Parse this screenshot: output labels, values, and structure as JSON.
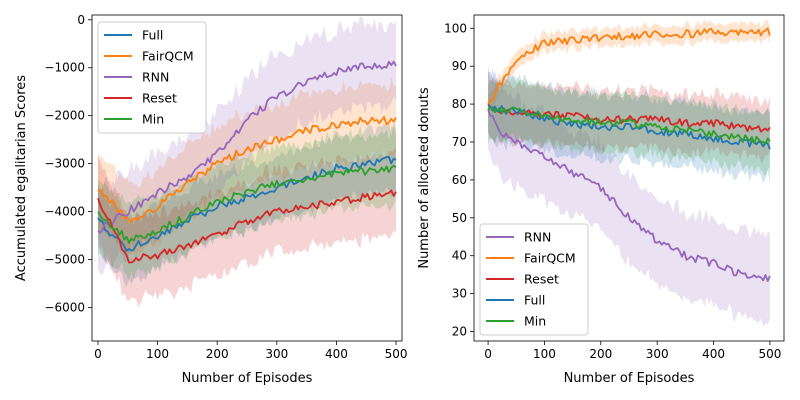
{
  "chart_data": [
    {
      "type": "line",
      "title": "",
      "xlabel": "Number of Episodes",
      "ylabel": "Accumulated egalitarian Scores",
      "xlim": [
        -10,
        510
      ],
      "ylim": [
        -6700,
        100
      ],
      "xticks": [
        0,
        100,
        200,
        300,
        400,
        500
      ],
      "yticks": [
        -6000,
        -5000,
        -4000,
        -3000,
        -2000,
        -1000,
        0
      ],
      "xtick_labels": [
        "0",
        "100",
        "200",
        "300",
        "400",
        "500"
      ],
      "ytick_labels": [
        "−6000",
        "−5000",
        "−4000",
        "−3000",
        "−2000",
        "−1000",
        "0"
      ],
      "legend_position": "upper-left",
      "series": [
        {
          "name": "Full",
          "color": "#1f77b4",
          "x": [
            0,
            50,
            100,
            150,
            200,
            250,
            300,
            350,
            400,
            450,
            500
          ],
          "y": [
            -4200,
            -4800,
            -4500,
            -4200,
            -3900,
            -3700,
            -3500,
            -3300,
            -3100,
            -3000,
            -2900
          ],
          "band": 700
        },
        {
          "name": "FairQCM",
          "color": "#ff7f0e",
          "x": [
            0,
            50,
            100,
            150,
            200,
            250,
            300,
            350,
            400,
            450,
            500
          ],
          "y": [
            -3500,
            -4200,
            -3900,
            -3400,
            -3000,
            -2700,
            -2500,
            -2300,
            -2200,
            -2100,
            -2100
          ],
          "band": 800
        },
        {
          "name": "RNN",
          "color": "#9467bd",
          "x": [
            0,
            50,
            100,
            150,
            200,
            250,
            300,
            350,
            400,
            450,
            500
          ],
          "y": [
            -4400,
            -4000,
            -3600,
            -3300,
            -2800,
            -2100,
            -1600,
            -1300,
            -1100,
            -950,
            -950
          ],
          "band": 900
        },
        {
          "name": "Reset",
          "color": "#d62728",
          "x": [
            0,
            50,
            100,
            150,
            200,
            250,
            300,
            350,
            400,
            450,
            500
          ],
          "y": [
            -3700,
            -5000,
            -4900,
            -4700,
            -4500,
            -4200,
            -4000,
            -3900,
            -3800,
            -3700,
            -3600
          ],
          "band": 900
        },
        {
          "name": "Min",
          "color": "#2ca02c",
          "x": [
            0,
            50,
            100,
            150,
            200,
            250,
            300,
            350,
            400,
            450,
            500
          ],
          "y": [
            -4000,
            -4600,
            -4400,
            -4100,
            -3800,
            -3600,
            -3400,
            -3300,
            -3200,
            -3150,
            -3100
          ],
          "band": 800
        }
      ]
    },
    {
      "type": "line",
      "title": "",
      "xlabel": "Number of Episodes",
      "ylabel": "Number of allocated donuts",
      "xlim": [
        -25,
        525
      ],
      "ylim": [
        17.5,
        103.5
      ],
      "xticks": [
        0,
        100,
        200,
        300,
        400,
        500
      ],
      "yticks": [
        20,
        30,
        40,
        50,
        60,
        70,
        80,
        90,
        100
      ],
      "xtick_labels": [
        "0",
        "100",
        "200",
        "300",
        "400",
        "500"
      ],
      "ytick_labels": [
        "20",
        "30",
        "40",
        "50",
        "60",
        "70",
        "80",
        "90",
        "100"
      ],
      "legend_position": "lower-left",
      "series": [
        {
          "name": "RNN",
          "color": "#9467bd",
          "x": [
            0,
            25,
            50,
            100,
            150,
            200,
            250,
            300,
            350,
            400,
            450,
            500
          ],
          "y": [
            79,
            72,
            70,
            66,
            62,
            58,
            50,
            44,
            40,
            38,
            35,
            34
          ],
          "band": 12
        },
        {
          "name": "FairQCM",
          "color": "#ff7f0e",
          "x": [
            0,
            25,
            50,
            100,
            150,
            200,
            250,
            300,
            350,
            400,
            450,
            500
          ],
          "y": [
            80,
            86,
            92,
            96,
            97,
            97.5,
            98,
            98.5,
            98.5,
            99,
            99,
            99
          ],
          "band": 2.5
        },
        {
          "name": "Reset",
          "color": "#d62728",
          "x": [
            0,
            50,
            100,
            150,
            200,
            250,
            300,
            350,
            400,
            450,
            500
          ],
          "y": [
            79,
            78,
            77,
            77,
            76,
            76,
            76,
            75,
            75,
            74,
            73
          ],
          "band": 8
        },
        {
          "name": "Full",
          "color": "#1f77b4",
          "x": [
            0,
            50,
            100,
            150,
            200,
            250,
            300,
            350,
            400,
            450,
            500
          ],
          "y": [
            79,
            78,
            76,
            75,
            74,
            74,
            73,
            72,
            71,
            70,
            69
          ],
          "band": 9
        },
        {
          "name": "Min",
          "color": "#2ca02c",
          "x": [
            0,
            50,
            100,
            150,
            200,
            250,
            300,
            350,
            400,
            450,
            500
          ],
          "y": [
            79,
            78,
            77,
            76,
            75,
            75,
            74,
            73,
            72,
            71,
            70
          ],
          "band": 8
        }
      ]
    }
  ]
}
